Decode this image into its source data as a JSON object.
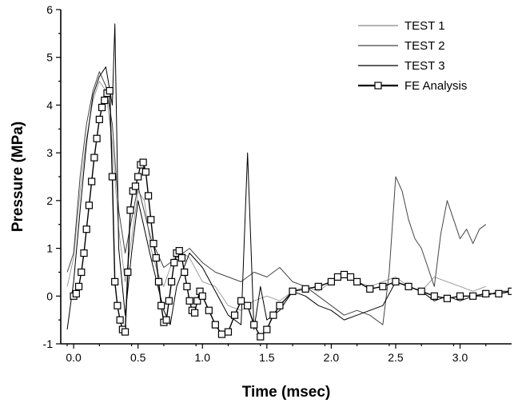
{
  "chart_data": {
    "type": "line",
    "xlabel": "Time (msec)",
    "ylabel": "Pressure (MPa)",
    "xlim": [
      -0.1,
      3.4
    ],
    "ylim": [
      -1,
      6
    ],
    "xticks": [
      0.0,
      0.5,
      1.0,
      1.5,
      2.0,
      2.5,
      3.0
    ],
    "xtick_labels": [
      "0.0",
      "0.5",
      "1.0",
      "1.5",
      "2.0",
      "2.5",
      "3.0"
    ],
    "yticks": [
      -1,
      0,
      1,
      2,
      3,
      4,
      5,
      6
    ],
    "ytick_labels": [
      "-1",
      "0",
      "1",
      "2",
      "3",
      "4",
      "5",
      "6"
    ],
    "legend_position": "top-right",
    "series": [
      {
        "name": "TEST 1",
        "color": "#888888",
        "x": [
          -0.05,
          0.0,
          0.05,
          0.1,
          0.15,
          0.2,
          0.25,
          0.3,
          0.35,
          0.4,
          0.45,
          0.5,
          0.55,
          0.6,
          0.65,
          0.7,
          0.75,
          0.8,
          0.9,
          1.0,
          1.1,
          1.2,
          1.3,
          1.4,
          1.5,
          1.6,
          1.7,
          1.8,
          1.9,
          2.0,
          2.1,
          2.2,
          2.3,
          2.4,
          2.5,
          2.6,
          2.7,
          2.8,
          2.9,
          3.0,
          3.1,
          3.2
        ],
        "y": [
          0.2,
          0.8,
          2.2,
          3.3,
          4.1,
          4.5,
          4.3,
          3.2,
          1.4,
          0.3,
          1.2,
          2.2,
          2.0,
          1.0,
          0.5,
          0.2,
          0.6,
          1.0,
          0.8,
          0.3,
          0.2,
          -0.2,
          -0.3,
          -0.1,
          0.0,
          -0.1,
          0.1,
          0.2,
          0.1,
          0.3,
          0.4,
          0.3,
          0.2,
          0.3,
          0.4,
          0.2,
          0.1,
          0.4,
          0.3,
          0.2,
          0.1,
          0.2
        ]
      },
      {
        "name": "TEST 2",
        "color": "#444444",
        "x": [
          -0.05,
          0.0,
          0.05,
          0.1,
          0.15,
          0.2,
          0.25,
          0.3,
          0.35,
          0.4,
          0.45,
          0.5,
          0.6,
          0.7,
          0.8,
          0.9,
          1.0,
          1.1,
          1.2,
          1.3,
          1.4,
          1.5,
          1.6,
          1.7,
          1.8,
          1.9,
          2.0,
          2.1,
          2.2,
          2.3,
          2.4,
          2.45,
          2.5,
          2.55,
          2.6,
          2.65,
          2.7,
          2.75,
          2.8,
          2.85,
          2.9,
          2.95,
          3.0,
          3.05,
          3.1,
          3.15,
          3.2
        ],
        "y": [
          0.5,
          0.9,
          2.5,
          3.6,
          4.3,
          4.7,
          4.4,
          3.6,
          1.8,
          0.9,
          1.6,
          2.3,
          1.2,
          0.6,
          0.8,
          1.0,
          0.7,
          0.5,
          0.4,
          0.3,
          0.5,
          0.4,
          0.6,
          0.3,
          0.2,
          0.0,
          -0.2,
          -0.4,
          -0.3,
          -0.4,
          -0.6,
          0.5,
          2.5,
          2.2,
          1.6,
          1.2,
          1.0,
          0.6,
          0.2,
          1.3,
          2.0,
          1.6,
          1.2,
          1.4,
          1.1,
          1.4,
          1.5
        ]
      },
      {
        "name": "TEST 3",
        "color": "#000000",
        "x": [
          -0.05,
          0.0,
          0.05,
          0.1,
          0.15,
          0.2,
          0.25,
          0.3,
          0.32,
          0.35,
          0.4,
          0.45,
          0.5,
          0.6,
          0.7,
          0.75,
          0.8,
          0.9,
          1.0,
          1.1,
          1.2,
          1.3,
          1.35,
          1.4,
          1.45,
          1.5,
          1.6,
          1.7,
          1.8,
          1.9,
          2.0,
          2.1,
          2.2,
          2.3,
          2.4,
          2.5,
          2.6,
          2.7,
          2.8,
          2.9,
          3.0,
          3.1,
          3.2,
          3.3,
          3.4
        ],
        "y": [
          -0.7,
          0.3,
          1.8,
          3.2,
          4.2,
          4.6,
          4.8,
          4.0,
          5.7,
          1.0,
          -0.4,
          0.9,
          2.0,
          0.8,
          -0.3,
          -0.6,
          0.2,
          0.9,
          0.6,
          0.1,
          -0.4,
          -0.6,
          3.0,
          -0.7,
          0.2,
          -0.5,
          -0.3,
          0.1,
          0.0,
          -0.2,
          -0.3,
          -0.5,
          -0.4,
          -0.3,
          -0.2,
          0.3,
          0.2,
          0.1,
          -0.1,
          0.0,
          -0.1,
          0.0,
          0.0,
          0.1,
          0.1
        ]
      },
      {
        "name": "FE Analysis",
        "color": "#000000",
        "marker": "square",
        "x": [
          0.0,
          0.02,
          0.04,
          0.06,
          0.08,
          0.1,
          0.12,
          0.14,
          0.16,
          0.18,
          0.2,
          0.22,
          0.24,
          0.26,
          0.28,
          0.3,
          0.32,
          0.34,
          0.36,
          0.38,
          0.4,
          0.42,
          0.44,
          0.46,
          0.48,
          0.5,
          0.52,
          0.54,
          0.56,
          0.58,
          0.6,
          0.62,
          0.64,
          0.66,
          0.68,
          0.7,
          0.72,
          0.74,
          0.76,
          0.78,
          0.8,
          0.82,
          0.84,
          0.86,
          0.88,
          0.9,
          0.92,
          0.94,
          0.96,
          0.98,
          1.0,
          1.05,
          1.1,
          1.15,
          1.2,
          1.25,
          1.3,
          1.35,
          1.4,
          1.45,
          1.5,
          1.55,
          1.6,
          1.7,
          1.8,
          1.9,
          2.0,
          2.05,
          2.1,
          2.15,
          2.2,
          2.3,
          2.4,
          2.5,
          2.6,
          2.7,
          2.8,
          2.9,
          3.0,
          3.1,
          3.2,
          3.3,
          3.4
        ],
        "y": [
          0.0,
          0.05,
          0.2,
          0.5,
          0.9,
          1.4,
          1.9,
          2.4,
          2.9,
          3.3,
          3.7,
          3.95,
          4.1,
          4.25,
          4.3,
          2.5,
          0.3,
          -0.2,
          -0.5,
          -0.7,
          -0.75,
          0.5,
          1.8,
          2.2,
          2.3,
          2.5,
          2.75,
          2.8,
          2.6,
          2.1,
          1.6,
          1.1,
          0.8,
          0.3,
          -0.2,
          -0.55,
          -0.5,
          -0.1,
          0.3,
          0.7,
          0.9,
          0.95,
          0.8,
          0.5,
          0.2,
          -0.1,
          -0.3,
          -0.35,
          -0.1,
          0.1,
          0.0,
          -0.3,
          -0.6,
          -0.8,
          -0.75,
          -0.4,
          -0.1,
          -0.2,
          -0.6,
          -0.85,
          -0.7,
          -0.4,
          -0.2,
          0.1,
          0.15,
          0.2,
          0.3,
          0.4,
          0.45,
          0.4,
          0.3,
          0.15,
          0.2,
          0.3,
          0.2,
          0.1,
          0.0,
          -0.05,
          0.0,
          0.0,
          0.05,
          0.05,
          0.1
        ]
      }
    ]
  }
}
